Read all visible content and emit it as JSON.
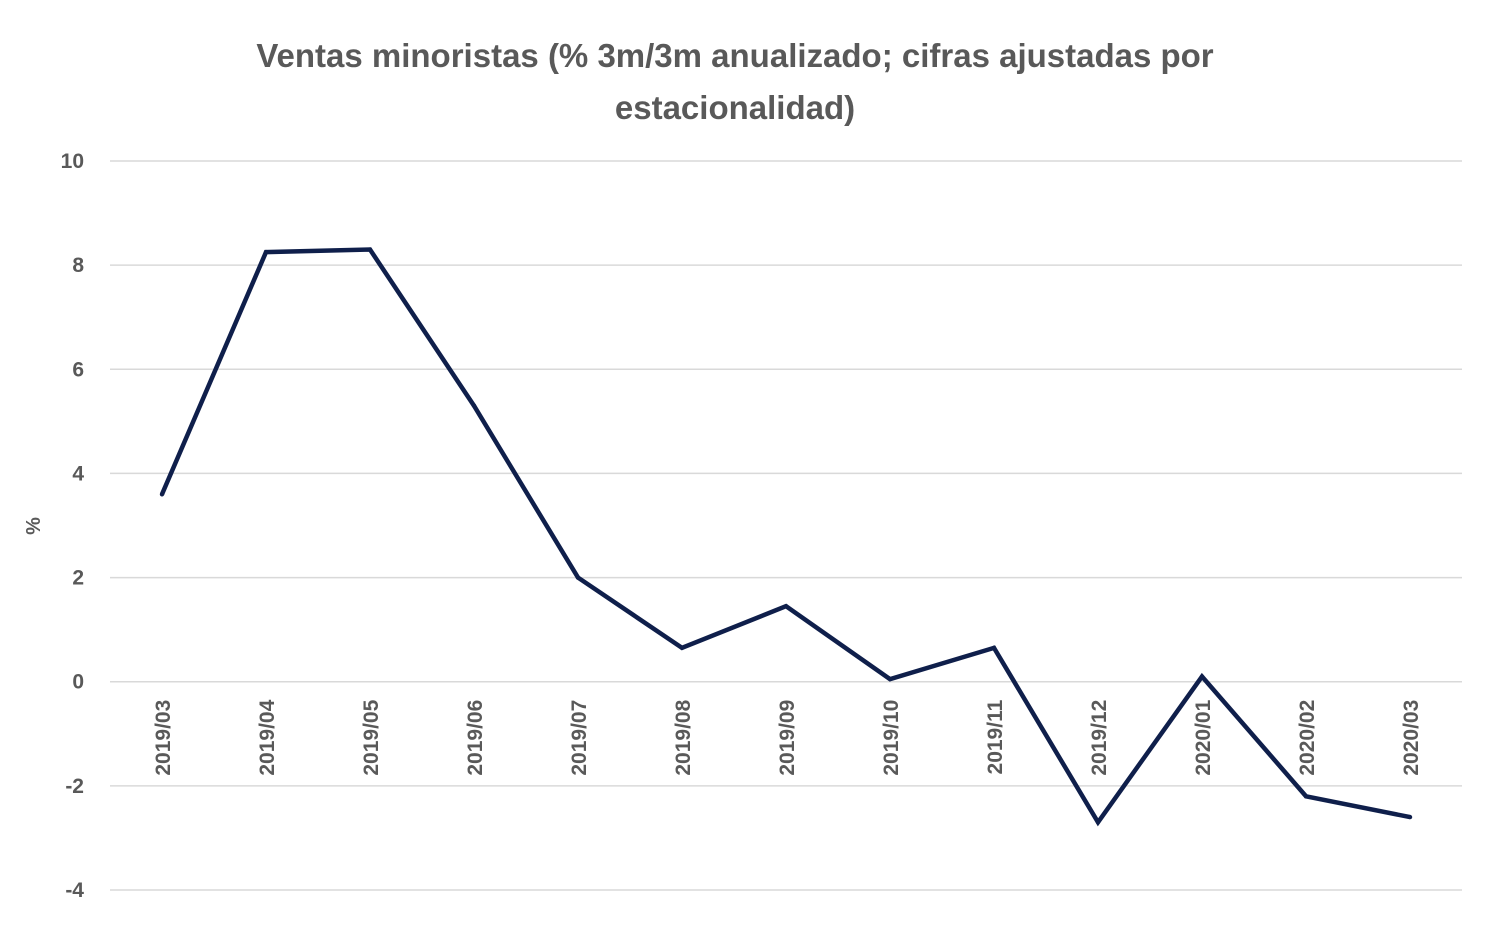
{
  "chart_data": {
    "type": "line",
    "title": "Ventas minoristas (% 3m/3m anualizado; cifras ajustadas por estacionalidad)",
    "xlabel": "",
    "ylabel": "%",
    "ylim": [
      -4,
      10
    ],
    "yticks": [
      10,
      8,
      6,
      4,
      2,
      0,
      -2,
      -4
    ],
    "ytick_labels": [
      "10",
      "8",
      "6",
      "4",
      "2",
      "0",
      "-2",
      "-4"
    ],
    "grid": true,
    "legend": "none",
    "categories": [
      "2019/03",
      "2019/04",
      "2019/05",
      "2019/06",
      "2019/07",
      "2019/08",
      "2019/09",
      "2019/10",
      "2019/11",
      "2019/12",
      "2020/01",
      "2020/02",
      "2020/03"
    ],
    "series": [
      {
        "name": "Ventas minoristas",
        "color": "#0f1f4b",
        "values": [
          3.6,
          8.25,
          8.3,
          5.3,
          2.0,
          0.65,
          1.45,
          0.05,
          0.65,
          -2.7,
          0.1,
          -2.2,
          -2.6
        ]
      }
    ],
    "colors": {
      "line": "#0f1f4b",
      "grid": "#d9d9d9",
      "text": "#595959"
    }
  }
}
